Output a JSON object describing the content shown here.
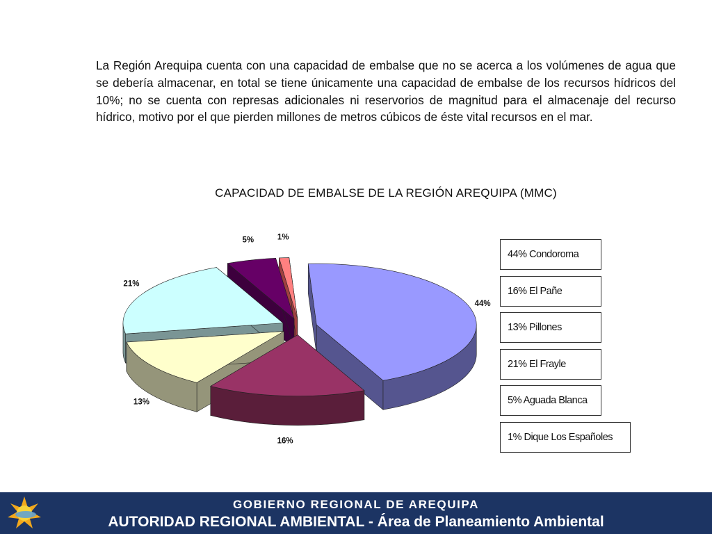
{
  "paragraph": "La Región Arequipa cuenta con una capacidad de embalse que no se acerca a los volúmenes  de agua que se debería almacenar, en total se tiene únicamente una capacidad de embalse de los recursos hídricos del 10%; no se cuenta con represas adicionales ni reservorios de magnitud para el almacenaje del recurso hídrico, motivo por el que pierden millones de metros cúbicos de éste vital recursos en el mar.",
  "chart_data": {
    "type": "pie",
    "title": "CAPACIDAD DE EMBALSE DE LA REGIÓN AREQUIPA (MMC)",
    "three_d": true,
    "exploded": true,
    "legend_position": "right",
    "slices": [
      {
        "name": "Condoroma",
        "value": 44,
        "label": "44%",
        "legend": "44% Condoroma",
        "color": "#9999ff",
        "side_color": "#55558f"
      },
      {
        "name": "El Pañe",
        "value": 16,
        "label": "16%",
        "legend": "16% El Pañe",
        "color": "#993366",
        "side_color": "#5a1e3a"
      },
      {
        "name": "Pillones",
        "value": 13,
        "label": "13%",
        "legend": "13% Pillones",
        "color": "#ffffcc",
        "side_color": "#95957a"
      },
      {
        "name": "El Frayle",
        "value": 21,
        "label": "21%",
        "legend": "21% El Frayle",
        "color": "#ccffff",
        "side_color": "#7a9595"
      },
      {
        "name": "Aguada Blanca",
        "value": 5,
        "label": "5%",
        "legend": "5% Aguada Blanca",
        "color": "#660066",
        "side_color": "#3d003d"
      },
      {
        "name": "Dique Los Españoles",
        "value": 1,
        "label": "1%",
        "legend": "1% Dique Los Españoles",
        "color": "#ff8080",
        "side_color": "#a04040"
      }
    ]
  },
  "footer": {
    "line1": "GOBIERNO  REGIONAL  DE  AREQUIPA",
    "line2_bold": "AUTORIDAD REGIONAL AMBIENTAL",
    "line2_sep": " - ",
    "line2_rest": "Área de Planeamiento Ambiental"
  },
  "colors": {
    "footer_bg": "#1c3463",
    "logo": "sun-logo"
  }
}
